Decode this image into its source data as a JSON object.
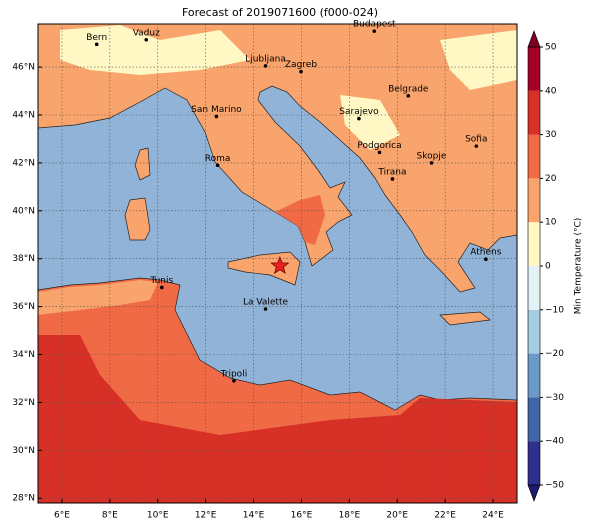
{
  "chart_data": {
    "type": "map",
    "title": "Forecast of 2019071600 (f000-024)",
    "xlim": [
      5,
      25
    ],
    "ylim": [
      27.8,
      47.8
    ],
    "xticks": [
      {
        "value": 6,
        "label": "6°E"
      },
      {
        "value": 8,
        "label": "8°E"
      },
      {
        "value": 10,
        "label": "10°E"
      },
      {
        "value": 12,
        "label": "12°E"
      },
      {
        "value": 14,
        "label": "14°E"
      },
      {
        "value": 16,
        "label": "16°E"
      },
      {
        "value": 18,
        "label": "18°E"
      },
      {
        "value": 20,
        "label": "20°E"
      },
      {
        "value": 22,
        "label": "22°E"
      },
      {
        "value": 24,
        "label": "24°E"
      }
    ],
    "yticks": [
      {
        "value": 28,
        "label": "28°N"
      },
      {
        "value": 30,
        "label": "30°N"
      },
      {
        "value": 32,
        "label": "32°N"
      },
      {
        "value": 34,
        "label": "34°N"
      },
      {
        "value": 36,
        "label": "36°N"
      },
      {
        "value": 38,
        "label": "38°N"
      },
      {
        "value": 40,
        "label": "40°N"
      },
      {
        "value": 42,
        "label": "42°N"
      },
      {
        "value": 44,
        "label": "44°N"
      },
      {
        "value": 46,
        "label": "46°N"
      }
    ],
    "grid": true,
    "cities": [
      {
        "name": "Bern",
        "lon": 7.45,
        "lat": 46.95
      },
      {
        "name": "Vaduz",
        "lon": 9.52,
        "lat": 47.14
      },
      {
        "name": "Budapest",
        "lon": 19.04,
        "lat": 47.5
      },
      {
        "name": "Ljubljana",
        "lon": 14.5,
        "lat": 46.05
      },
      {
        "name": "Zagreb",
        "lon": 15.98,
        "lat": 45.81
      },
      {
        "name": "Belgrade",
        "lon": 20.46,
        "lat": 44.8
      },
      {
        "name": "San Marino",
        "lon": 12.45,
        "lat": 43.94
      },
      {
        "name": "Sarajevo",
        "lon": 18.4,
        "lat": 43.85
      },
      {
        "name": "Sofia",
        "lon": 23.3,
        "lat": 42.7
      },
      {
        "name": "Podgorica",
        "lon": 19.26,
        "lat": 42.44
      },
      {
        "name": "Skopje",
        "lon": 21.43,
        "lat": 42.0
      },
      {
        "name": "Roma",
        "lon": 12.5,
        "lat": 41.9
      },
      {
        "name": "Tirana",
        "lon": 19.8,
        "lat": 41.33
      },
      {
        "name": "Athens",
        "lon": 23.7,
        "lat": 37.98
      },
      {
        "name": "Tunis",
        "lon": 10.17,
        "lat": 36.8
      },
      {
        "name": "La Valette",
        "lon": 14.5,
        "lat": 35.9
      },
      {
        "name": "Tripoli",
        "lon": 13.18,
        "lat": 32.9
      }
    ],
    "marker": {
      "lon": 15.1,
      "lat": 37.7,
      "color": "#e8201c"
    },
    "colorbar": {
      "label": "Min Temperature (°C)",
      "ticks": [
        {
          "value": -50,
          "label": "−50"
        },
        {
          "value": -40,
          "label": "−40"
        },
        {
          "value": -30,
          "label": "−30"
        },
        {
          "value": -20,
          "label": "−20"
        },
        {
          "value": -10,
          "label": "−10"
        },
        0,
        10,
        20,
        30,
        40,
        50
      ],
      "colors": [
        "#2c2f8e",
        "#3f64a8",
        "#6b9ac6",
        "#a6cde2",
        "#e2f2f5",
        "#fff8c5",
        "#f8a46c",
        "#f06a45",
        "#d73027",
        "#a50026"
      ],
      "under": "#1f1b6e",
      "over": "#7d0021"
    }
  }
}
